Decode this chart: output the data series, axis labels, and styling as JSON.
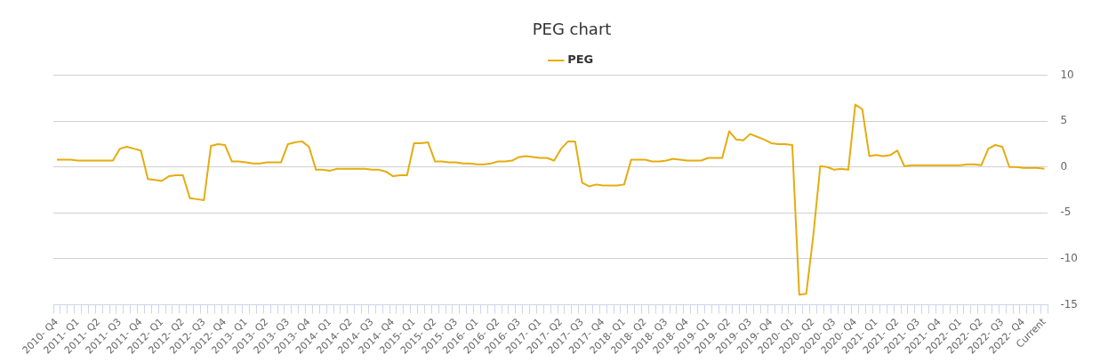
{
  "chart_data": {
    "type": "line",
    "title": "PEG chart",
    "categories": [
      "2010- Q4",
      null,
      null,
      "2011- Q1",
      null,
      null,
      "2011- Q2",
      null,
      null,
      "2011- Q3",
      null,
      null,
      "2011- Q4",
      null,
      null,
      "2012- Q1",
      null,
      null,
      "2012- Q2",
      null,
      null,
      "2012- Q3",
      null,
      null,
      "2012- Q4",
      null,
      null,
      "2013- Q1",
      null,
      null,
      "2013- Q2",
      null,
      null,
      "2013- Q3",
      null,
      null,
      "2013- Q4",
      null,
      null,
      "2014- Q1",
      null,
      null,
      "2014- Q2",
      null,
      null,
      "2014- Q3",
      null,
      null,
      "2014- Q4",
      null,
      null,
      "2015- Q1",
      null,
      null,
      "2015- Q2",
      null,
      null,
      "2015- Q3",
      null,
      null,
      "2016- Q1",
      null,
      null,
      "2016- Q2",
      null,
      null,
      "2016- Q3",
      null,
      null,
      "2017- Q1",
      null,
      null,
      "2017- Q2",
      null,
      null,
      "2017- Q3",
      null,
      null,
      "2017- Q4",
      null,
      null,
      "2018- Q1",
      null,
      null,
      "2018- Q2",
      null,
      null,
      "2018- Q3",
      null,
      null,
      "2018- Q4",
      null,
      null,
      "2019- Q1",
      null,
      null,
      "2019- Q2",
      null,
      null,
      "2019- Q3",
      null,
      null,
      "2019- Q4",
      null,
      null,
      "2020- Q1",
      null,
      null,
      "2020- Q2",
      null,
      null,
      "2020- Q3",
      null,
      null,
      "2020- Q4",
      null,
      null,
      "2021- Q1",
      null,
      null,
      "2021- Q2",
      null,
      null,
      "2021- Q3",
      null,
      null,
      "2021- Q4",
      null,
      null,
      "2022- Q1",
      null,
      null,
      "2022- Q2",
      null,
      null,
      "2022- Q3",
      null,
      null,
      "2022- Q4",
      null,
      null,
      "Current"
    ],
    "series": [
      {
        "name": "PEG",
        "color": "#e5ac0f",
        "values": [
          0.8,
          0.8,
          0.8,
          0.7,
          0.7,
          0.7,
          0.7,
          0.7,
          0.7,
          2.0,
          2.2,
          2.0,
          1.8,
          -1.3,
          -1.4,
          -1.5,
          -1.0,
          -0.9,
          -0.9,
          -3.4,
          -3.5,
          -3.6,
          2.3,
          2.5,
          2.4,
          0.6,
          0.6,
          0.5,
          0.4,
          0.4,
          0.5,
          0.5,
          0.5,
          2.5,
          2.7,
          2.8,
          2.2,
          -0.3,
          -0.3,
          -0.4,
          -0.2,
          -0.2,
          -0.2,
          -0.2,
          -0.2,
          -0.3,
          -0.3,
          -0.5,
          -1.0,
          -0.9,
          -0.9,
          2.6,
          2.6,
          2.7,
          0.6,
          0.6,
          0.5,
          0.5,
          0.4,
          0.4,
          0.3,
          0.3,
          0.4,
          0.6,
          0.6,
          0.7,
          1.1,
          1.2,
          1.1,
          1.0,
          1.0,
          0.7,
          2.0,
          2.8,
          2.8,
          -1.7,
          -2.1,
          -1.9,
          -2.0,
          -2.0,
          -2.0,
          -1.9,
          0.8,
          0.8,
          0.8,
          0.6,
          0.6,
          0.7,
          0.9,
          0.8,
          0.7,
          0.7,
          0.7,
          1.0,
          1.0,
          1.0,
          3.9,
          3.0,
          2.9,
          3.6,
          3.3,
          3.0,
          2.6,
          2.5,
          2.5,
          2.4,
          -13.9,
          -13.8,
          -7.5,
          0.1,
          0.0,
          -0.3,
          -0.2,
          -0.3,
          6.8,
          6.3,
          1.2,
          1.3,
          1.2,
          1.3,
          1.8,
          0.1,
          0.2,
          0.2,
          0.2,
          0.2,
          0.2,
          0.2,
          0.2,
          0.2,
          0.3,
          0.3,
          0.2,
          2.0,
          2.4,
          2.2,
          0.0,
          0.0,
          -0.1,
          -0.1,
          -0.1,
          -0.2
        ]
      }
    ],
    "ylim": [
      -15,
      10
    ],
    "yticks": [
      -15,
      -10,
      -5,
      0,
      5,
      10
    ],
    "grid": "y",
    "legend": "top",
    "marker": "none",
    "line_style": "solid"
  }
}
